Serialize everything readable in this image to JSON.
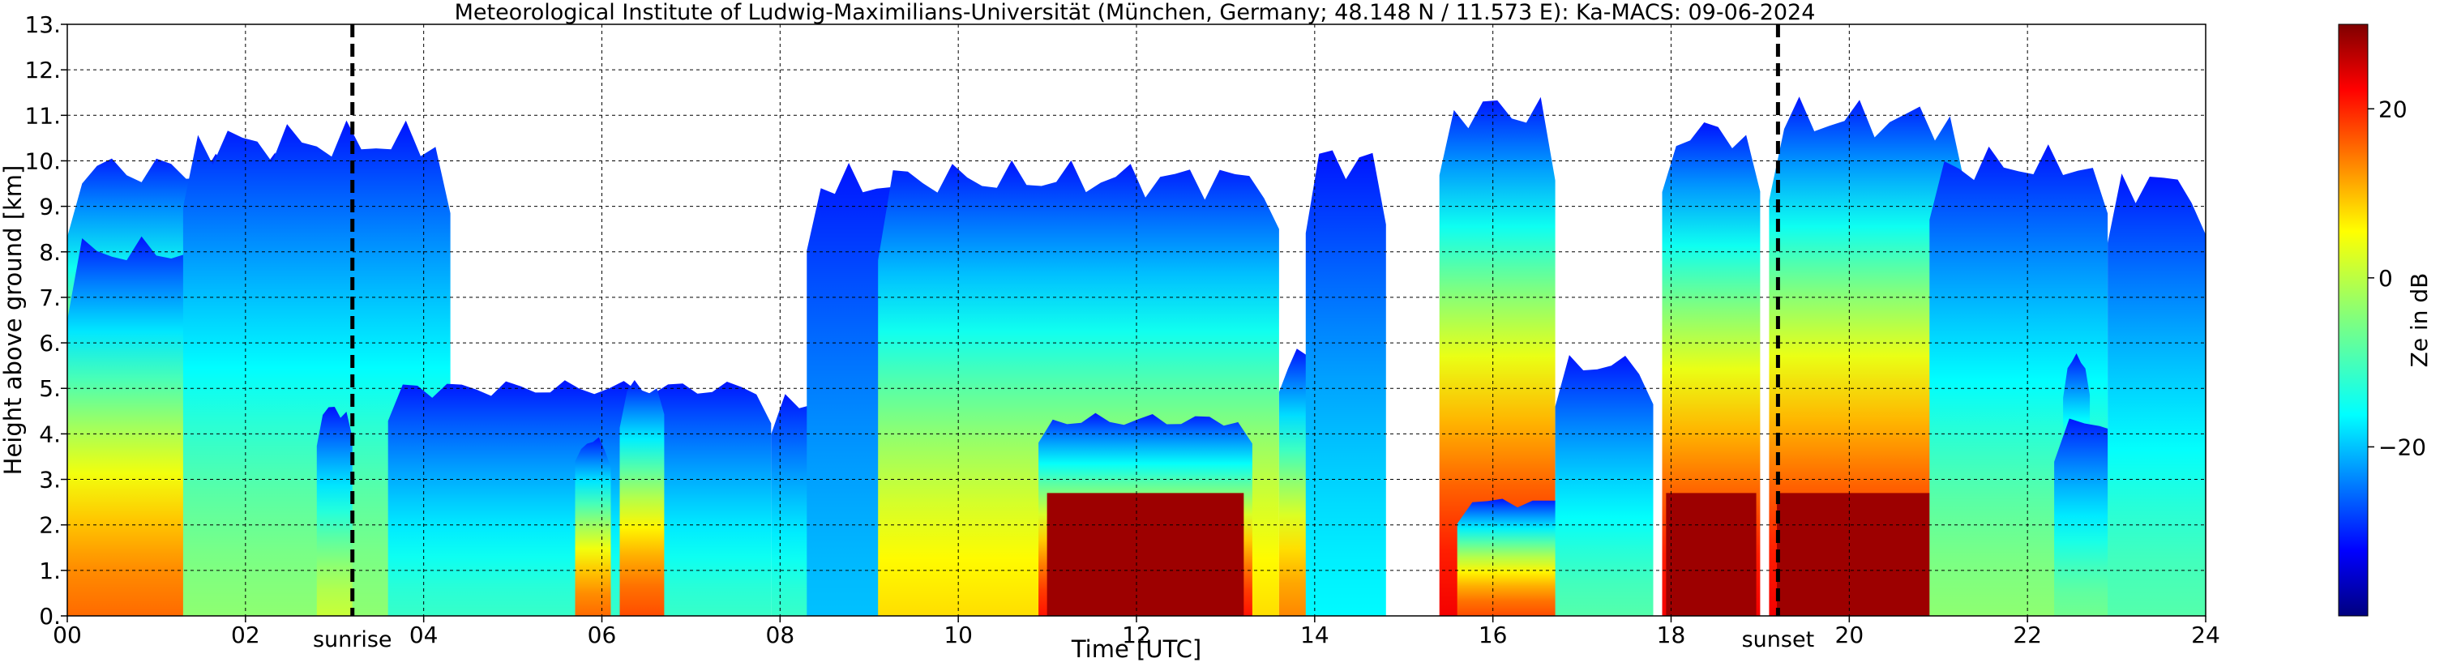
{
  "chart_data": {
    "type": "heatmap",
    "title": "Meteorological Institute of Ludwig-Maximilians-Universität (München, Germany; 48.148 N / 11.573 E):    Ka-MACS: 09-06-2024",
    "xlabel": "Time [UTC]",
    "ylabel": "Height above ground [km]",
    "xlim": [
      0,
      24
    ],
    "ylim": [
      0,
      13
    ],
    "x_ticks": [
      "00",
      "02",
      "04",
      "06",
      "08",
      "10",
      "12",
      "14",
      "16",
      "18",
      "20",
      "22",
      "24"
    ],
    "x_tick_values": [
      0,
      2,
      4,
      6,
      8,
      10,
      12,
      14,
      16,
      18,
      20,
      22,
      24
    ],
    "y_ticks": [
      "0.",
      "1.",
      "2.",
      "3.",
      "4.",
      "5.",
      "6.",
      "7.",
      "8.",
      "9.",
      "10.",
      "11.",
      "12.",
      "13."
    ],
    "y_tick_values": [
      0,
      1,
      2,
      3,
      4,
      5,
      6,
      7,
      8,
      9,
      10,
      11,
      12,
      13
    ],
    "grid": true,
    "markers": [
      {
        "label": "sunrise",
        "x": 3.2
      },
      {
        "label": "sunset",
        "x": 19.2
      }
    ],
    "colorbar": {
      "label": "Ze in dB",
      "colormap": "jet",
      "range": [
        -40,
        30
      ],
      "ticks": [
        {
          "label": "20",
          "value": 20
        },
        {
          "label": "0",
          "value": 0
        },
        {
          "label": "−20",
          "value": -20
        }
      ]
    },
    "echo_regions": [
      {
        "x0": 0.0,
        "x1": 2.5,
        "top": 9.8,
        "peak": 22,
        "core_top": 2.7
      },
      {
        "x0": 0.0,
        "x1": 2.5,
        "top": 8.0,
        "peak": 14,
        "core_top": 0
      },
      {
        "x0": 1.3,
        "x1": 4.3,
        "top": 10.4,
        "peak": -4,
        "core_top": 0
      },
      {
        "x0": 2.8,
        "x1": 3.2,
        "top": 4.5,
        "peak": 0,
        "core_top": 0
      },
      {
        "x0": 3.6,
        "x1": 7.9,
        "top": 5.0,
        "peak": -10,
        "core_top": 0
      },
      {
        "x0": 5.7,
        "x1": 6.1,
        "top": 3.8,
        "peak": 14,
        "core_top": 0
      },
      {
        "x0": 6.2,
        "x1": 6.7,
        "top": 5.0,
        "peak": 16,
        "core_top": 0
      },
      {
        "x0": 7.9,
        "x1": 9.0,
        "top": 4.7,
        "peak": -10,
        "core_top": 0
      },
      {
        "x0": 8.3,
        "x1": 9.4,
        "top": 9.5,
        "peak": -18,
        "core_top": 0
      },
      {
        "x0": 9.1,
        "x1": 13.6,
        "top": 9.6,
        "peak": 6,
        "core_top": 0
      },
      {
        "x0": 10.9,
        "x1": 13.3,
        "top": 4.3,
        "peak": 20,
        "core_top": 2.7
      },
      {
        "x0": 13.6,
        "x1": 14.2,
        "top": 5.7,
        "peak": 12,
        "core_top": 0
      },
      {
        "x0": 13.9,
        "x1": 14.8,
        "top": 10.0,
        "peak": -14,
        "core_top": 0
      },
      {
        "x0": 15.4,
        "x1": 16.7,
        "top": 11.1,
        "peak": 22,
        "core_top": 0
      },
      {
        "x0": 15.6,
        "x1": 17.8,
        "top": 2.5,
        "peak": 16,
        "core_top": 0
      },
      {
        "x0": 16.7,
        "x1": 17.8,
        "top": 5.5,
        "peak": -8,
        "core_top": 0
      },
      {
        "x0": 17.9,
        "x1": 19.0,
        "top": 10.6,
        "peak": 22,
        "core_top": 2.7
      },
      {
        "x0": 19.1,
        "x1": 21.3,
        "top": 10.9,
        "peak": 22,
        "core_top": 2.7
      },
      {
        "x0": 20.9,
        "x1": 22.9,
        "top": 9.9,
        "peak": -4,
        "core_top": 0
      },
      {
        "x0": 22.4,
        "x1": 22.7,
        "top": 5.6,
        "peak": 18,
        "core_top": 0
      },
      {
        "x0": 22.3,
        "x1": 24.0,
        "top": 4.2,
        "peak": -6,
        "core_top": 0
      },
      {
        "x0": 22.9,
        "x1": 24.0,
        "top": 9.5,
        "peak": -8,
        "core_top": 0
      }
    ]
  }
}
